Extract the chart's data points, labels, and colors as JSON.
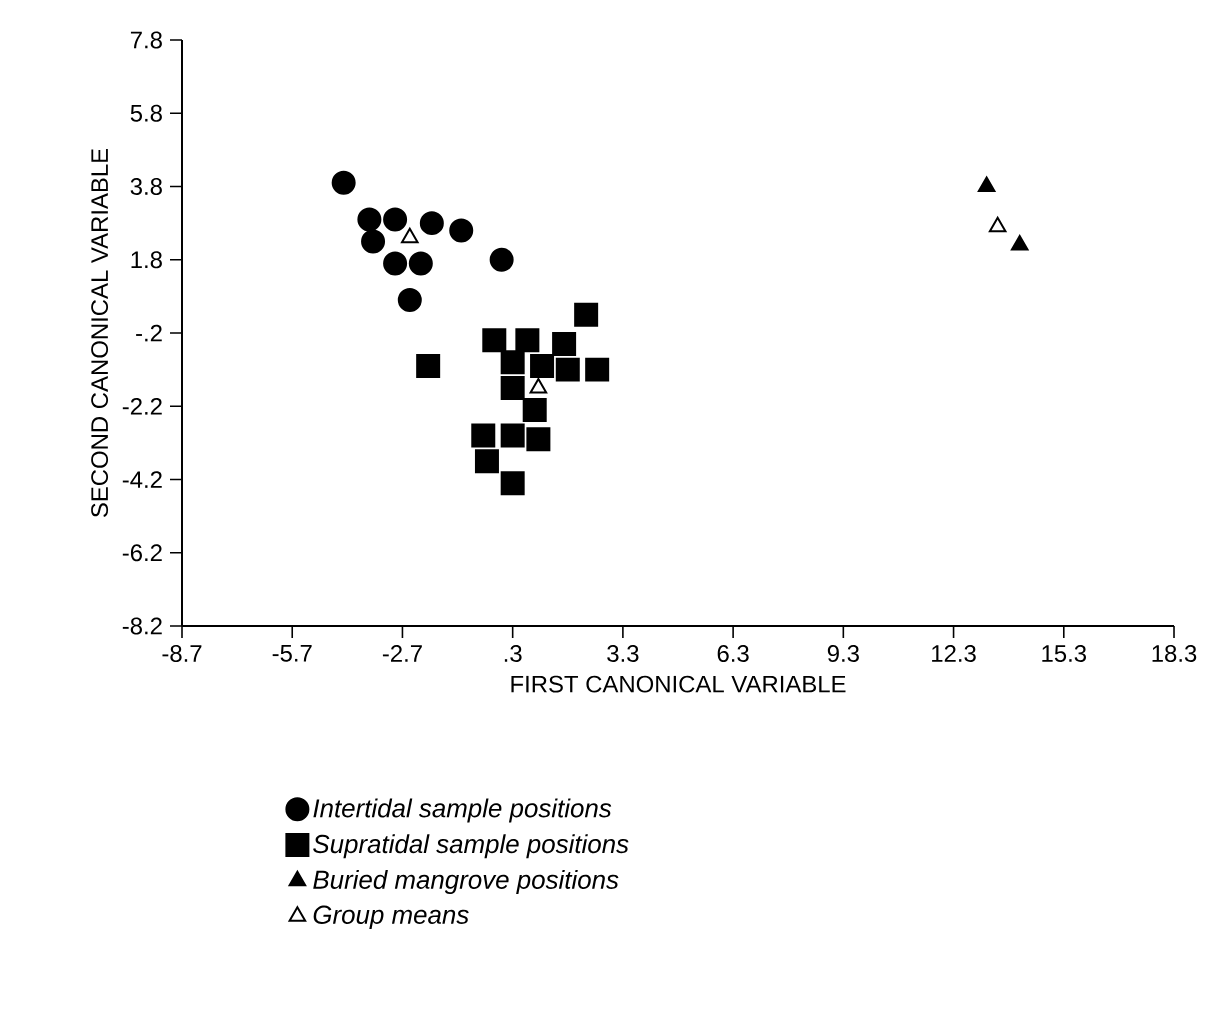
{
  "chart_data": {
    "type": "scatter",
    "xlabel": "FIRST  CANONICAL VARIABLE",
    "ylabel": "SECOND  CANONICAL  VARIABLE",
    "xlim": [
      -8.7,
      18.3
    ],
    "ylim": [
      -8.2,
      7.8
    ],
    "xticks": [
      -8.7,
      -5.7,
      -2.7,
      {
        "value": 0.3,
        "label": ".3"
      },
      3.3,
      6.3,
      9.3,
      12.3,
      15.3,
      18.3
    ],
    "yticks": [
      -8.2,
      -6.2,
      -4.2,
      -2.2,
      {
        "value": -0.2,
        "label": "-.2"
      },
      1.8,
      3.8,
      5.8,
      7.8
    ],
    "legend": "bottom",
    "grid": false,
    "series": [
      {
        "name": "Intertidal sample positions",
        "color": "#000000",
        "marker": "circle",
        "x": [
          -4.3,
          -3.6,
          -2.9,
          -1.9,
          -1.1,
          -3.5,
          -2.9,
          -2.2,
          0.0,
          -2.5
        ],
        "values": [
          3.9,
          2.9,
          2.9,
          2.8,
          2.6,
          2.3,
          1.7,
          1.7,
          1.8,
          0.7
        ]
      },
      {
        "name": "Supratidal sample positions",
        "color": "#000000",
        "marker": "square",
        "x": [
          2.3,
          -0.2,
          0.7,
          1.7,
          -2.0,
          0.3,
          1.1,
          1.8,
          2.6,
          0.3,
          0.9,
          -0.5,
          0.3,
          1.0,
          -0.4,
          0.3
        ],
        "values": [
          0.3,
          -0.4,
          -0.4,
          -0.5,
          -1.1,
          -1.0,
          -1.1,
          -1.2,
          -1.2,
          -1.7,
          -2.3,
          -3.0,
          -3.0,
          -3.1,
          -3.7,
          -4.3
        ]
      },
      {
        "name": "Buried mangrove positions",
        "color": "#000000",
        "marker": "triangle",
        "x": [
          13.2,
          14.1
        ],
        "values": [
          3.8,
          2.2
        ]
      },
      {
        "name": "Group means",
        "color": "#ffffff",
        "marker": "triangle",
        "x": [
          -2.5,
          1.0,
          13.5
        ],
        "values": [
          2.4,
          -1.7,
          2.7
        ]
      }
    ]
  }
}
